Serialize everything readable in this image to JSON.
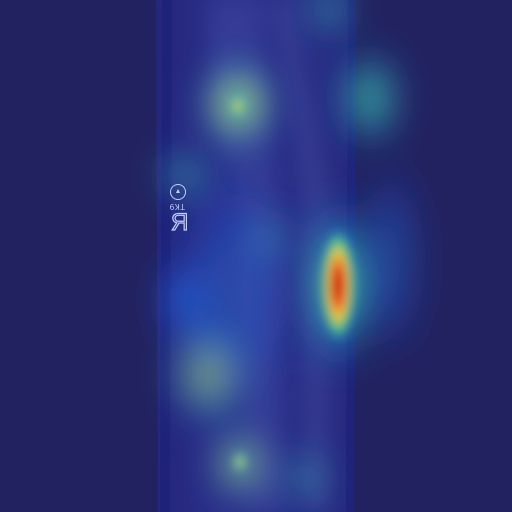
{
  "image": {
    "subject": "heatmap-over-xray",
    "colors": {
      "background": "#232260",
      "film": "#27287a",
      "hot": "#d31b14",
      "warm": "#f1d33a",
      "mid": "#2ab98a",
      "cool": "#1e65d0"
    }
  },
  "marker": {
    "letter": "R",
    "code": "TK9"
  }
}
